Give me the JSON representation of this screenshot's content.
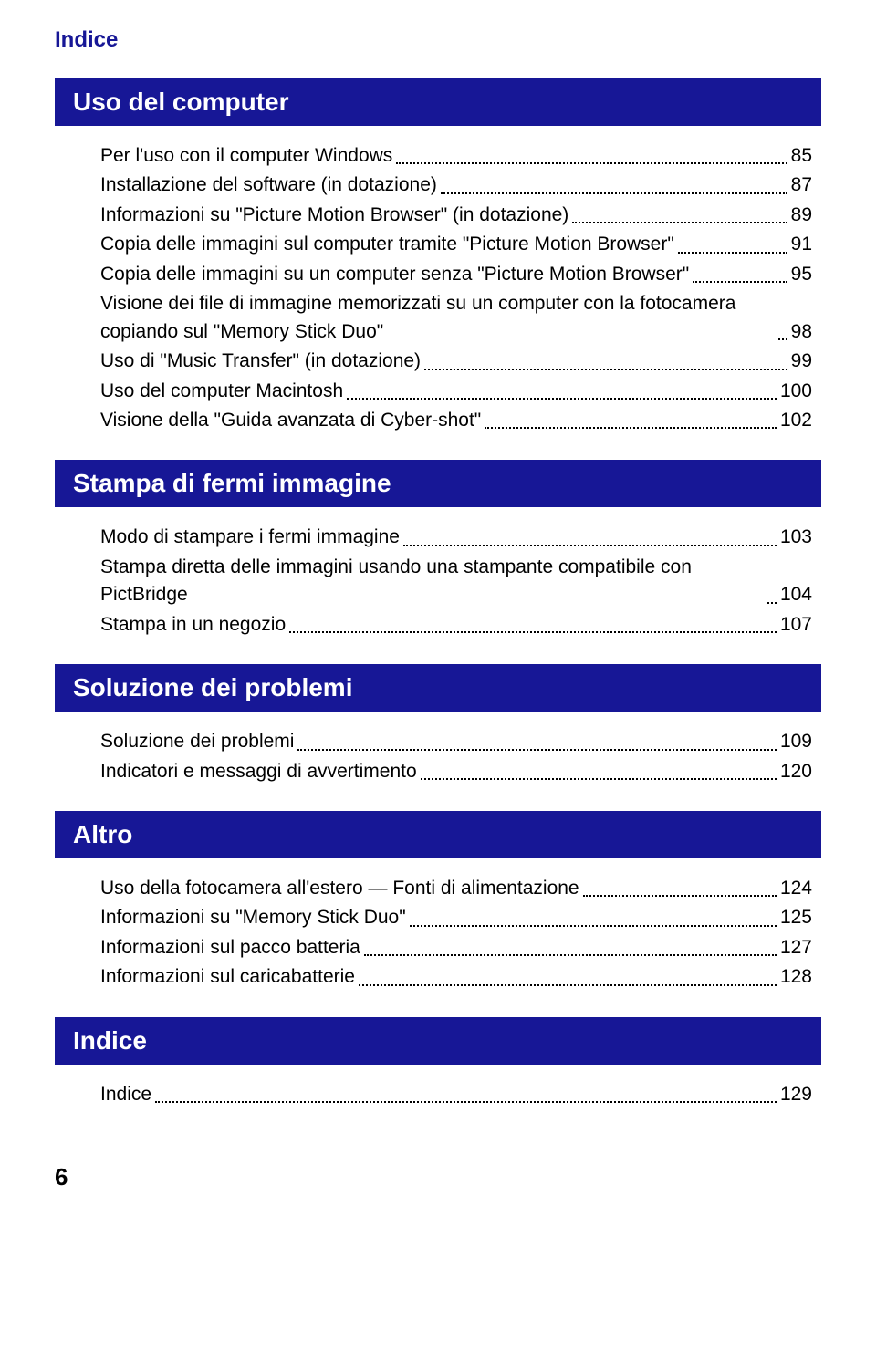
{
  "header": "Indice",
  "page_number": "6",
  "colors": {
    "brand": "#171796",
    "text": "#000000",
    "background": "#ffffff"
  },
  "sections": [
    {
      "title": "Uso del computer",
      "entries": [
        {
          "title": "Per l'uso con il computer Windows",
          "page": "85"
        },
        {
          "title": "Installazione del software (in dotazione)",
          "page": "87"
        },
        {
          "title": "Informazioni su \"Picture Motion Browser\" (in dotazione)",
          "page": "89"
        },
        {
          "title": "Copia delle immagini sul computer tramite \"Picture Motion Browser\"",
          "page": "91"
        },
        {
          "title": "Copia delle immagini su un computer senza \"Picture Motion Browser\"",
          "page": "95"
        },
        {
          "title": "Visione dei file di immagine memorizzati su un computer con la fotocamera copiando sul \"Memory Stick Duo\"",
          "page": "98"
        },
        {
          "title": "Uso di \"Music Transfer\" (in dotazione)",
          "page": "99"
        },
        {
          "title": "Uso del computer Macintosh",
          "page": "100"
        },
        {
          "title": "Visione della \"Guida avanzata di Cyber-shot\"",
          "page": "102"
        }
      ]
    },
    {
      "title": "Stampa di fermi immagine",
      "entries": [
        {
          "title": "Modo di stampare i fermi immagine",
          "page": "103"
        },
        {
          "title": "Stampa diretta delle immagini usando una stampante compatibile con PictBridge",
          "page": "104"
        },
        {
          "title": "Stampa in un negozio",
          "page": "107"
        }
      ]
    },
    {
      "title": "Soluzione dei problemi",
      "entries": [
        {
          "title": "Soluzione dei problemi",
          "page": "109"
        },
        {
          "title": "Indicatori e messaggi di avvertimento",
          "page": "120"
        }
      ]
    },
    {
      "title": "Altro",
      "entries": [
        {
          "title": "Uso della fotocamera all'estero — Fonti di alimentazione",
          "page": "124"
        },
        {
          "title": "Informazioni su \"Memory Stick Duo\"",
          "page": "125"
        },
        {
          "title": "Informazioni sul pacco batteria",
          "page": "127"
        },
        {
          "title": "Informazioni sul caricabatterie",
          "page": "128"
        }
      ]
    },
    {
      "title": "Indice",
      "entries": [
        {
          "title": "Indice",
          "page": "129"
        }
      ]
    }
  ]
}
